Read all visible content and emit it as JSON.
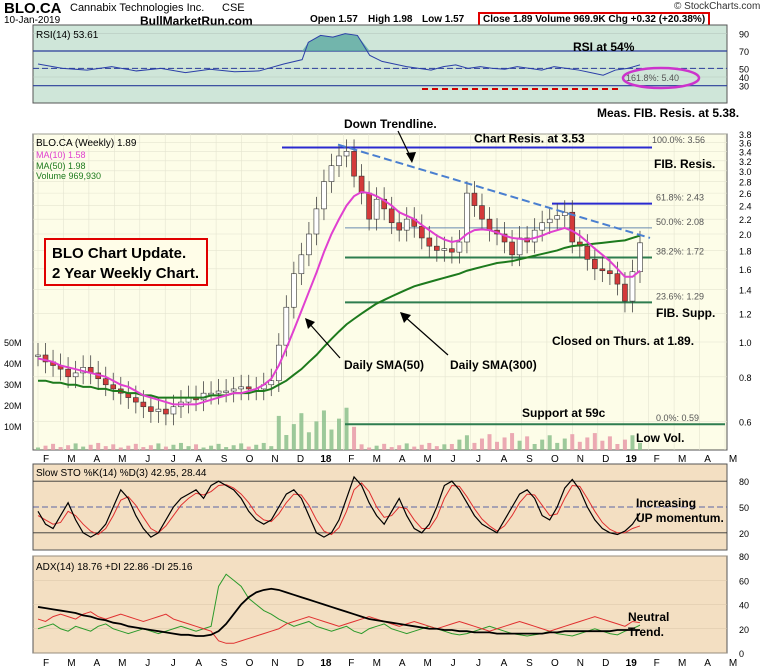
{
  "header": {
    "ticker": "BLO.CA",
    "company": "Cannabix Technologies Inc.",
    "exchange": "CSE",
    "date": "10-Jan-2019",
    "site": "BullMarketRun.com",
    "open": "Open 1.57",
    "high": "High 1.98",
    "low": "Low 1.57",
    "close_vol_chg": "Close 1.89  Volume 969.9K  Chg +0.32 (+20.38%)",
    "stockcharts": "© StockCharts.com"
  },
  "annotation_box": {
    "line1": "BLO Chart Update.",
    "line2": "2 Year Weekly Chart."
  },
  "chart_data": [
    {
      "type": "line",
      "panel": "rsi",
      "label": "RSI(14) 53.61",
      "ylim": [
        10,
        100
      ],
      "y_ticks": [
        "90",
        "70",
        "50",
        "40",
        "30"
      ],
      "series": [
        {
          "name": "RSI(14)",
          "x": [
            0,
            4,
            8,
            12,
            16,
            20,
            24,
            28,
            32,
            36,
            40,
            43,
            44,
            46,
            48,
            50,
            52,
            54,
            56,
            58,
            60,
            62,
            64,
            66,
            68,
            70,
            72,
            74,
            76,
            78,
            80,
            82,
            84,
            86,
            88,
            90,
            92,
            94,
            96,
            98
          ],
          "values": [
            55,
            50,
            48,
            52,
            47,
            50,
            45,
            49,
            46,
            47,
            55,
            60,
            80,
            88,
            86,
            90,
            88,
            65,
            58,
            55,
            52,
            50,
            48,
            52,
            54,
            50,
            52,
            50,
            49,
            52,
            50,
            48,
            52,
            50,
            48,
            45,
            42,
            48,
            50,
            54
          ]
        }
      ],
      "annotations": [
        {
          "text": "RSI at 54%"
        },
        {
          "text": "161.8%: 5.40"
        },
        {
          "text": "Meas. FIB. Resis. at 5.38."
        }
      ]
    },
    {
      "type": "candlestick",
      "panel": "price",
      "label": "BLO.CA (Weekly) 1.89",
      "legend": [
        "MA(10) 1.58",
        "MA(50) 1.98",
        "Volume 969,930"
      ],
      "y_scale": "log",
      "ylim": [
        0.5,
        3.8
      ],
      "y_ticks": [
        "3.8",
        "3.6",
        "3.4",
        "3.2",
        "3.0",
        "2.8",
        "2.6",
        "2.4",
        "2.2",
        "2.0",
        "1.8",
        "1.6",
        "1.4",
        "1.2",
        "1.0",
        "0.8",
        "0.6"
      ],
      "volume_ticks": [
        "50M",
        "40M",
        "30M",
        "20M",
        "10M"
      ],
      "x_ticks": [
        "F",
        "M",
        "A",
        "M",
        "J",
        "J",
        "A",
        "S",
        "O",
        "N",
        "D",
        "18",
        "F",
        "M",
        "A",
        "M",
        "J",
        "J",
        "A",
        "S",
        "O",
        "N",
        "D",
        "19",
        "F",
        "M",
        "A",
        "M"
      ],
      "close": [
        0.92,
        0.88,
        0.86,
        0.84,
        0.8,
        0.82,
        0.85,
        0.82,
        0.79,
        0.76,
        0.74,
        0.72,
        0.7,
        0.68,
        0.66,
        0.64,
        0.65,
        0.63,
        0.66,
        0.68,
        0.7,
        0.69,
        0.72,
        0.72,
        0.73,
        0.73,
        0.74,
        0.75,
        0.74,
        0.74,
        0.76,
        0.78,
        0.98,
        1.25,
        1.55,
        1.75,
        2.0,
        2.35,
        2.8,
        3.1,
        3.3,
        3.4,
        2.9,
        2.6,
        2.2,
        2.5,
        2.35,
        2.15,
        2.05,
        2.2,
        2.1,
        1.95,
        1.85,
        1.8,
        1.82,
        1.78,
        1.9,
        2.6,
        2.4,
        2.2,
        2.05,
        2.0,
        1.9,
        1.75,
        1.95,
        1.9,
        2.05,
        2.15,
        2.2,
        2.25,
        2.3,
        1.9,
        1.85,
        1.7,
        1.6,
        1.58,
        1.55,
        1.45,
        1.3,
        1.57,
        1.89
      ],
      "ma_short": [
        0.9,
        0.89,
        0.88,
        0.86,
        0.85,
        0.84,
        0.83,
        0.82,
        0.81,
        0.8,
        0.78,
        0.76,
        0.75,
        0.73,
        0.71,
        0.7,
        0.69,
        0.68,
        0.67,
        0.67,
        0.67,
        0.67,
        0.68,
        0.69,
        0.7,
        0.71,
        0.72,
        0.72,
        0.73,
        0.74,
        0.76,
        0.79,
        0.86,
        0.96,
        1.08,
        1.22,
        1.38,
        1.56,
        1.78,
        2.0,
        2.2,
        2.4,
        2.55,
        2.62,
        2.6,
        2.55,
        2.48,
        2.4,
        2.3,
        2.25,
        2.2,
        2.12,
        2.05,
        1.98,
        1.93,
        1.9,
        1.92,
        2.0,
        2.05,
        2.06,
        2.05,
        2.02,
        1.98,
        1.95,
        1.94,
        1.93,
        1.95,
        1.98,
        2.02,
        2.05,
        2.08,
        2.04,
        1.98,
        1.9,
        1.82,
        1.75,
        1.68,
        1.6,
        1.52,
        1.52,
        1.58
      ],
      "ma_long": [
        0.78,
        0.78,
        0.77,
        0.77,
        0.76,
        0.76,
        0.75,
        0.75,
        0.74,
        0.74,
        0.73,
        0.73,
        0.72,
        0.72,
        0.71,
        0.71,
        0.7,
        0.7,
        0.7,
        0.7,
        0.7,
        0.7,
        0.7,
        0.71,
        0.71,
        0.71,
        0.72,
        0.72,
        0.72,
        0.73,
        0.73,
        0.74,
        0.76,
        0.78,
        0.81,
        0.84,
        0.88,
        0.92,
        0.97,
        1.02,
        1.07,
        1.12,
        1.16,
        1.2,
        1.24,
        1.28,
        1.31,
        1.34,
        1.37,
        1.4,
        1.43,
        1.45,
        1.47,
        1.49,
        1.51,
        1.53,
        1.55,
        1.58,
        1.6,
        1.62,
        1.64,
        1.66,
        1.67,
        1.68,
        1.7,
        1.72,
        1.74,
        1.76,
        1.78,
        1.8,
        1.83,
        1.85,
        1.86,
        1.87,
        1.88,
        1.89,
        1.9,
        1.91,
        1.92,
        1.95,
        1.98
      ],
      "levels": [
        {
          "label": "Chart Resis. at 3.53",
          "value": 3.53
        },
        {
          "label": "100.0%: 3.56",
          "value": 3.56
        },
        {
          "label": "61.8%: 2.43",
          "value": 2.43
        },
        {
          "label": "50.0%: 2.08",
          "value": 2.08
        },
        {
          "label": "38.2%: 1.72",
          "value": 1.72
        },
        {
          "label": "23.6%: 1.29",
          "value": 1.29
        },
        {
          "label": "0.0%: 0.59",
          "value": 0.59
        }
      ],
      "annotations": [
        {
          "text": "Down Trendline."
        },
        {
          "text": "FIB. Resis."
        },
        {
          "text": "FIB. Supp."
        },
        {
          "text": "Closed on Thurs. at 1.89."
        },
        {
          "text": "Daily SMA(50)"
        },
        {
          "text": "Daily SMA(300)"
        },
        {
          "text": "Support at 59c"
        },
        {
          "text": "Low Vol."
        }
      ]
    },
    {
      "type": "line",
      "panel": "stochastic",
      "label": "Slow STO %K(14) %D(3) 42.95, 28.44",
      "ylim": [
        0,
        100
      ],
      "y_ticks": [
        "80",
        "50",
        "20"
      ],
      "series": [
        {
          "name": "%K",
          "values": [
            45,
            30,
            25,
            40,
            55,
            35,
            20,
            15,
            20,
            30,
            50,
            70,
            60,
            40,
            25,
            15,
            20,
            35,
            50,
            60,
            65,
            70,
            60,
            75,
            80,
            75,
            70,
            60,
            45,
            35,
            30,
            35,
            50,
            65,
            70,
            60,
            40,
            20,
            15,
            20,
            35,
            60,
            85,
            75,
            55,
            40,
            30,
            45,
            60,
            40,
            25,
            20,
            30,
            50,
            75,
            80,
            70,
            55,
            40,
            30,
            25,
            20,
            35,
            50,
            65,
            70,
            60,
            40,
            35,
            50,
            72,
            82,
            70,
            50,
            35,
            25,
            20,
            18,
            22,
            30,
            43
          ]
        },
        {
          "name": "%D",
          "values": [
            40,
            35,
            30,
            32,
            45,
            40,
            30,
            22,
            18,
            25,
            40,
            58,
            62,
            52,
            38,
            25,
            20,
            28,
            40,
            52,
            60,
            66,
            64,
            68,
            75,
            76,
            72,
            65,
            55,
            42,
            35,
            33,
            42,
            55,
            65,
            64,
            52,
            35,
            22,
            18,
            26,
            45,
            70,
            78,
            68,
            50,
            38,
            40,
            50,
            48,
            35,
            25,
            25,
            38,
            60,
            75,
            74,
            62,
            48,
            36,
            28,
            22,
            28,
            40,
            55,
            65,
            64,
            52,
            40,
            42,
            60,
            75,
            74,
            60,
            45,
            32,
            24,
            20,
            20,
            25,
            28
          ]
        }
      ],
      "annotations": [
        {
          "text": "Increasing"
        },
        {
          "text": "UP momentum."
        }
      ]
    },
    {
      "type": "line",
      "panel": "adx",
      "label": "ADX(14) 18.76 +DI 22.86 -DI 25.16",
      "ylim": [
        0,
        80
      ],
      "y_ticks": [
        "80",
        "60",
        "40",
        "20",
        "0"
      ],
      "x_ticks": [
        "F",
        "M",
        "A",
        "M",
        "J",
        "J",
        "A",
        "S",
        "O",
        "N",
        "D",
        "18",
        "F",
        "M",
        "A",
        "M",
        "J",
        "J",
        "A",
        "S",
        "O",
        "N",
        "D",
        "19",
        "F",
        "M",
        "A",
        "M"
      ],
      "series": [
        {
          "name": "ADX",
          "values": [
            38,
            37,
            36,
            35,
            34,
            33,
            31,
            30,
            28,
            27,
            25,
            24,
            22,
            21,
            20,
            19,
            18,
            17,
            16,
            15,
            15,
            14,
            14,
            15,
            18,
            24,
            32,
            40,
            46,
            50,
            52,
            53,
            52,
            50,
            48,
            46,
            44,
            42,
            40,
            38,
            36,
            34,
            32,
            30,
            28,
            27,
            26,
            25,
            24,
            23,
            22,
            21,
            20,
            20,
            19,
            19,
            18,
            18,
            17,
            17,
            17,
            16,
            16,
            16,
            16,
            16,
            16,
            16,
            17,
            17,
            18,
            18,
            18,
            18,
            18,
            18,
            18,
            19,
            19,
            19,
            19
          ]
        },
        {
          "name": "+DI",
          "values": [
            20,
            22,
            24,
            20,
            18,
            22,
            20,
            18,
            22,
            24,
            20,
            18,
            16,
            18,
            20,
            18,
            16,
            18,
            20,
            22,
            20,
            18,
            20,
            22,
            55,
            65,
            60,
            55,
            45,
            40,
            35,
            32,
            28,
            25,
            22,
            24,
            26,
            22,
            20,
            18,
            20,
            22,
            18,
            16,
            20,
            22,
            24,
            20,
            18,
            16,
            18,
            20,
            22,
            20,
            18,
            16,
            15,
            16,
            18,
            20,
            22,
            20,
            18,
            16,
            15,
            14,
            15,
            16,
            18,
            16,
            15,
            14,
            16,
            18,
            20,
            18,
            16,
            15,
            18,
            20,
            23
          ]
        },
        {
          "name": "-DI",
          "values": [
            28,
            26,
            30,
            32,
            30,
            28,
            32,
            34,
            30,
            28,
            30,
            32,
            30,
            28,
            26,
            28,
            30,
            32,
            28,
            26,
            24,
            22,
            20,
            18,
            10,
            8,
            8,
            10,
            12,
            14,
            16,
            18,
            20,
            24,
            26,
            28,
            30,
            28,
            26,
            24,
            22,
            24,
            26,
            28,
            30,
            28,
            26,
            24,
            22,
            24,
            26,
            24,
            22,
            20,
            22,
            24,
            26,
            24,
            22,
            20,
            18,
            20,
            22,
            24,
            26,
            24,
            22,
            20,
            18,
            20,
            22,
            24,
            26,
            28,
            30,
            28,
            26,
            24,
            22,
            26,
            25
          ]
        }
      ],
      "annotations": [
        {
          "text": "Neutral"
        },
        {
          "text": "Trend."
        }
      ]
    }
  ]
}
